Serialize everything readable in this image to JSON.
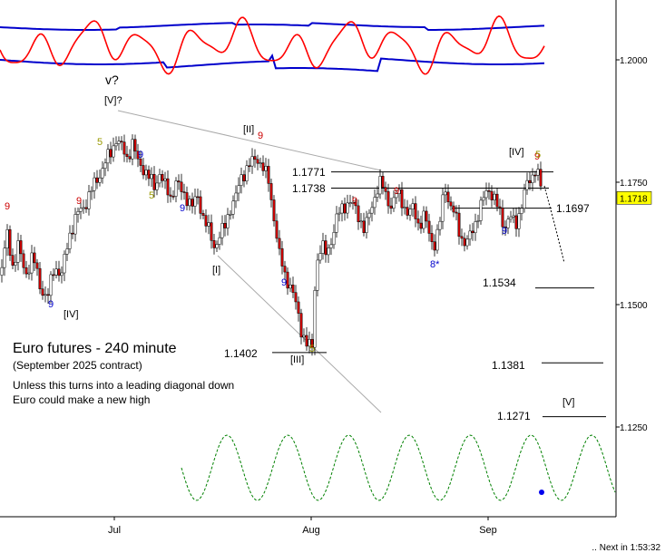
{
  "chart_data": {
    "type": "candlestick",
    "title": "Euro futures - 240 minute",
    "subtitle": "(September 2025 contract)",
    "notes": [
      "Unless this turns into a leading diagonal down",
      "Euro could make a new high"
    ],
    "countdown": "Next in 1:53:32",
    "x_ticks": [
      "Jul",
      "Aug",
      "Sep"
    ],
    "y_ticks": [
      "1.2000",
      "1.1750",
      "1.1500",
      "1.1250"
    ],
    "ylim": [
      1.1185,
      1.2055
    ],
    "current_price": "1.1718",
    "price_levels": [
      {
        "label": "1.1771",
        "value": 1.1771
      },
      {
        "label": "1.1738",
        "value": 1.1738
      },
      {
        "label": "1.1697",
        "value": 1.1697
      },
      {
        "label": "1.1534",
        "value": 1.1534
      },
      {
        "label": "1.1402",
        "value": 1.1402
      },
      {
        "label": "1.1381",
        "value": 1.1381
      },
      {
        "label": "1.1271",
        "value": 1.1271
      }
    ],
    "wave_labels": [
      "v?",
      "[V]?",
      "[IV]",
      "[II]",
      "[I]",
      "[III]",
      "[IV]",
      "[V]",
      "8*"
    ],
    "count_labels": {
      "red": [
        "9",
        "9",
        "9",
        "9",
        "9",
        "9"
      ],
      "blue": [
        "9",
        "9",
        "9",
        "9",
        "9"
      ],
      "olive": [
        "5",
        "5",
        "5",
        "5"
      ]
    },
    "colors": {
      "up_candle": "#ffffff",
      "down_candle": "#cc0000",
      "indicator_red": "#ff0000",
      "indicator_blue": "#0000cc",
      "cycle_green": "#008000",
      "price_box": "#ffff00",
      "trendline": "#aaaaaa"
    }
  }
}
